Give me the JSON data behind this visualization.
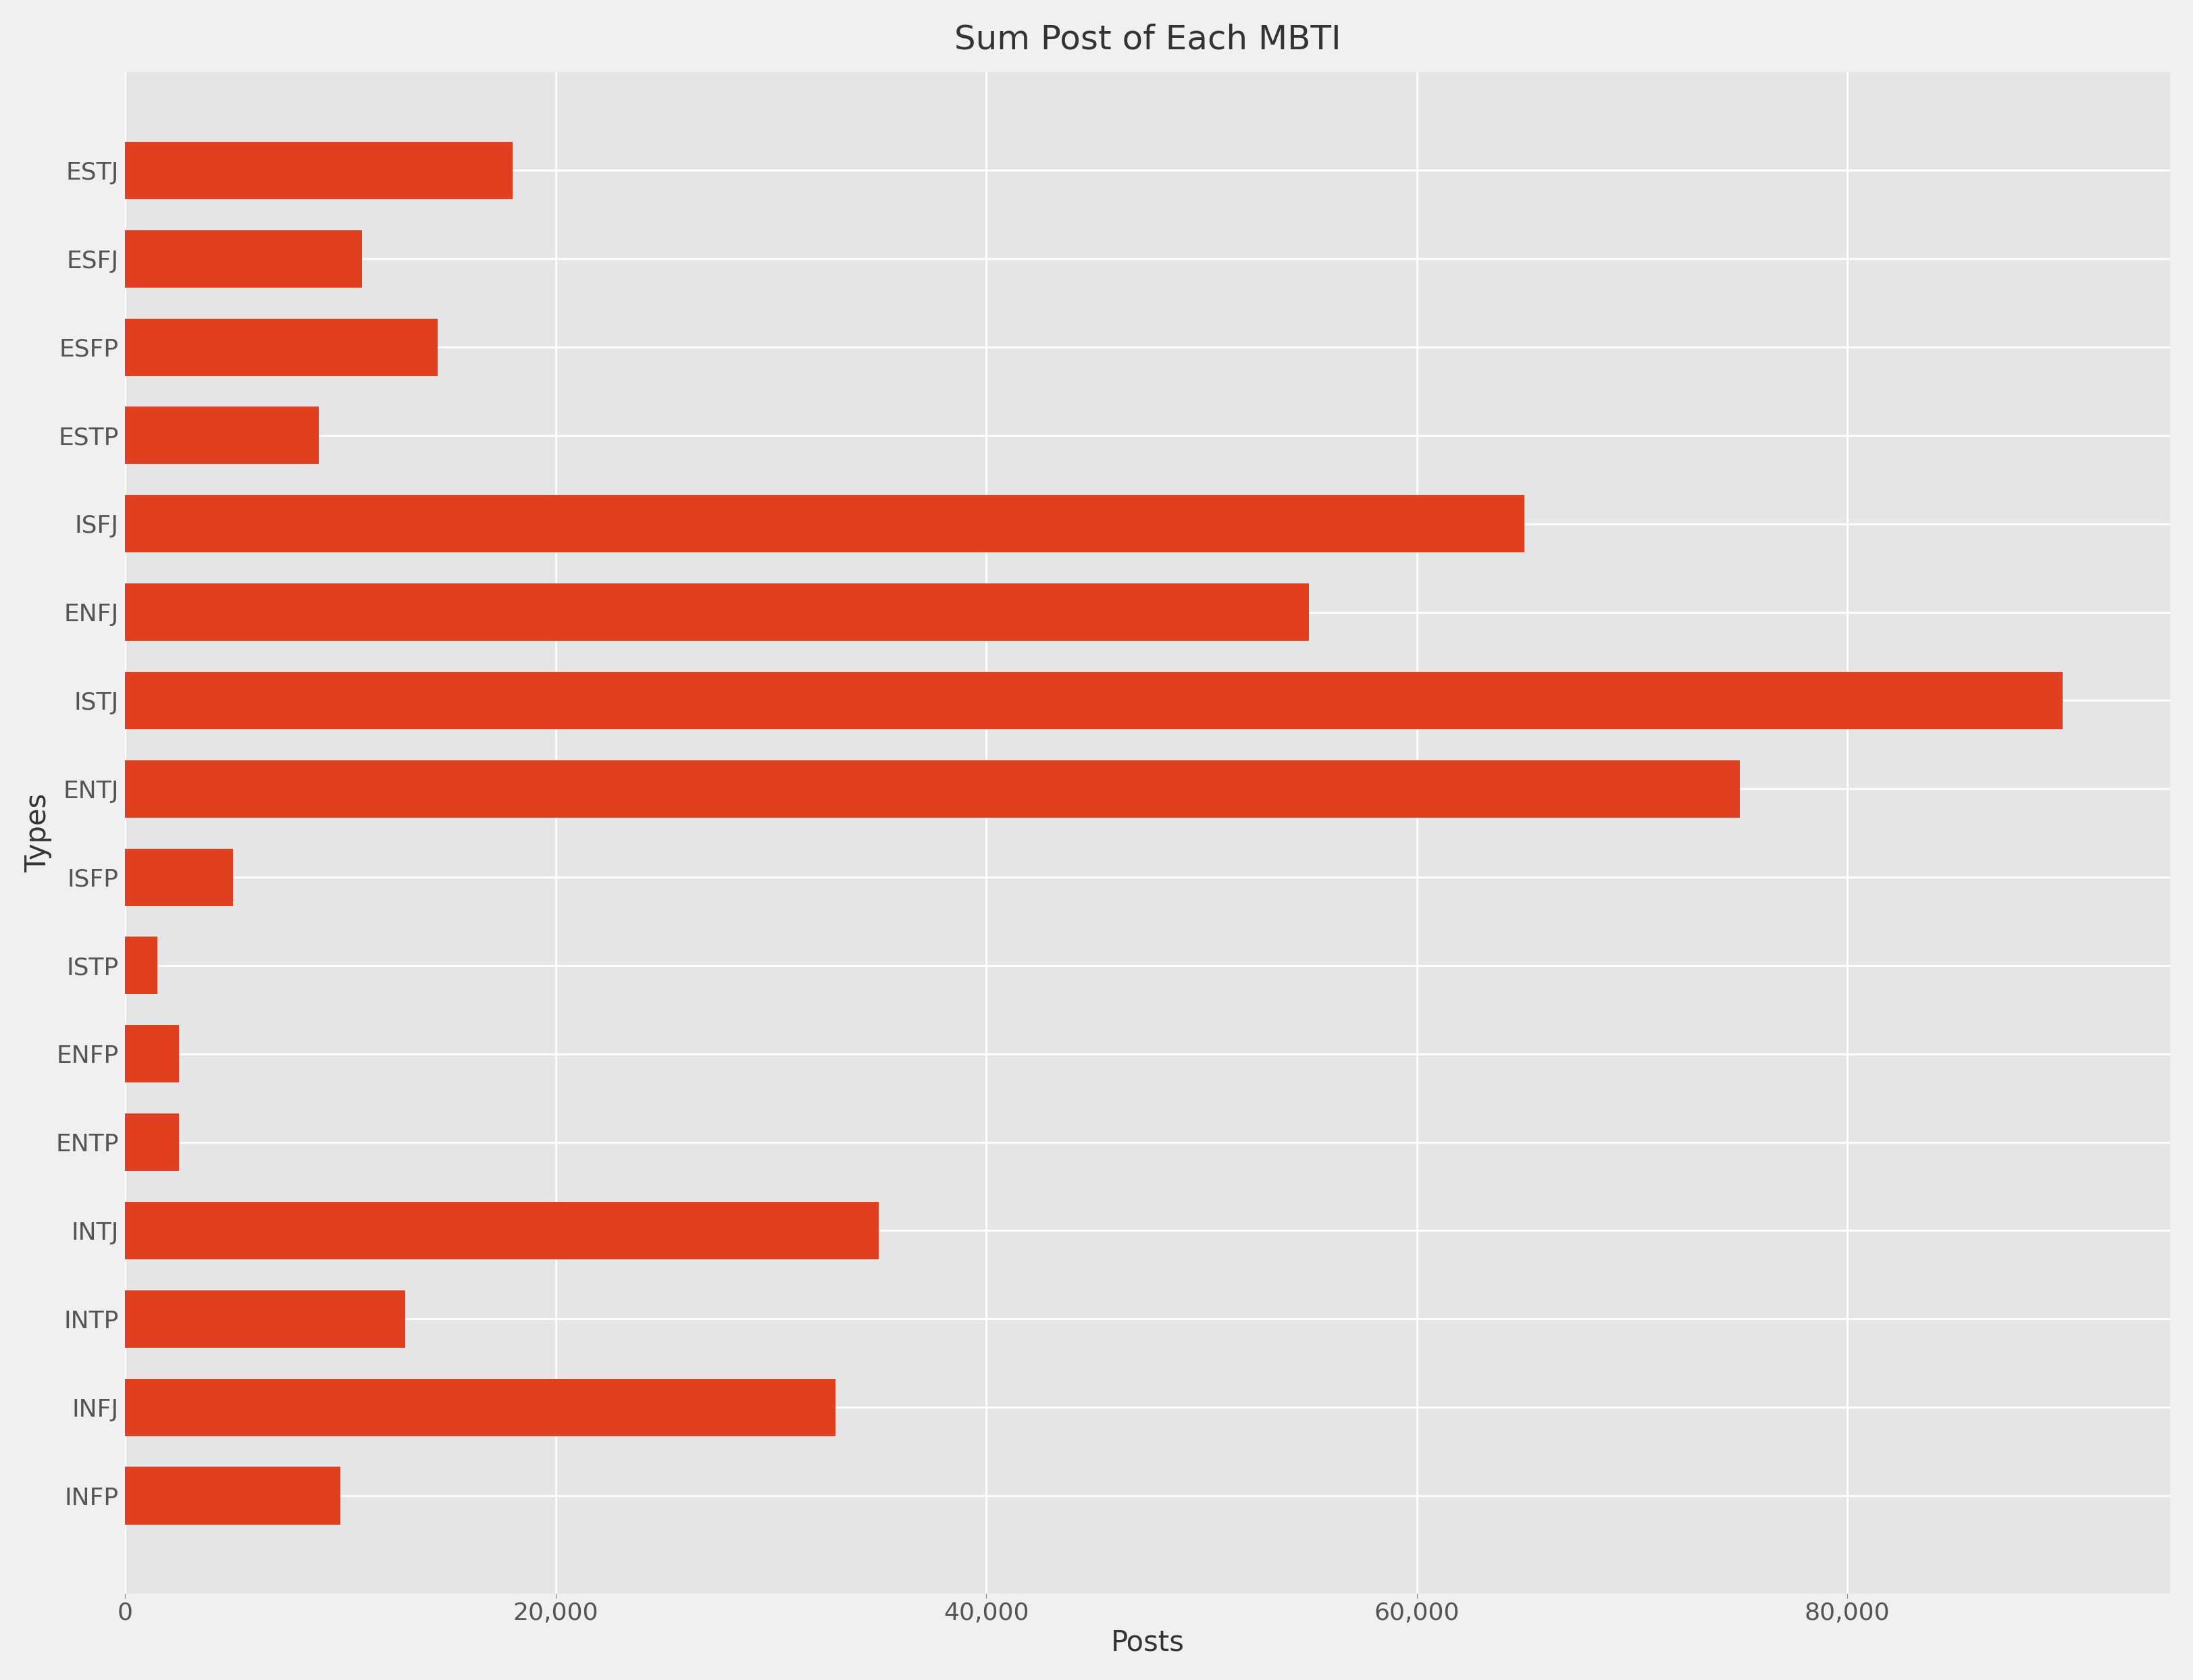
{
  "categories": [
    "ESTJ",
    "ESFJ",
    "ESFP",
    "ESTP",
    "ISFJ",
    "ENFJ",
    "ISTJ",
    "ENTJ",
    "ISFP",
    "ISTP",
    "ENFP",
    "ENTP",
    "INTJ",
    "INTP",
    "INFJ",
    "INFP"
  ],
  "values": [
    18000,
    11000,
    14500,
    9000,
    65000,
    55000,
    90000,
    75000,
    5000,
    1500,
    2500,
    2500,
    35000,
    13000,
    33000,
    10000
  ],
  "bar_color": "#e04020",
  "background_color": "#e5e5e5",
  "plot_bg_color": "#e5e5e5",
  "outer_bg_color": "#f0f0f0",
  "title": "Sum Post of Each MBTI",
  "xlabel": "Posts",
  "ylabel": "Types",
  "title_fontsize": 36,
  "axis_label_fontsize": 30,
  "tick_fontsize": 26,
  "xlim": [
    0,
    95000
  ],
  "grid_color": "#ffffff",
  "bar_height": 0.65
}
